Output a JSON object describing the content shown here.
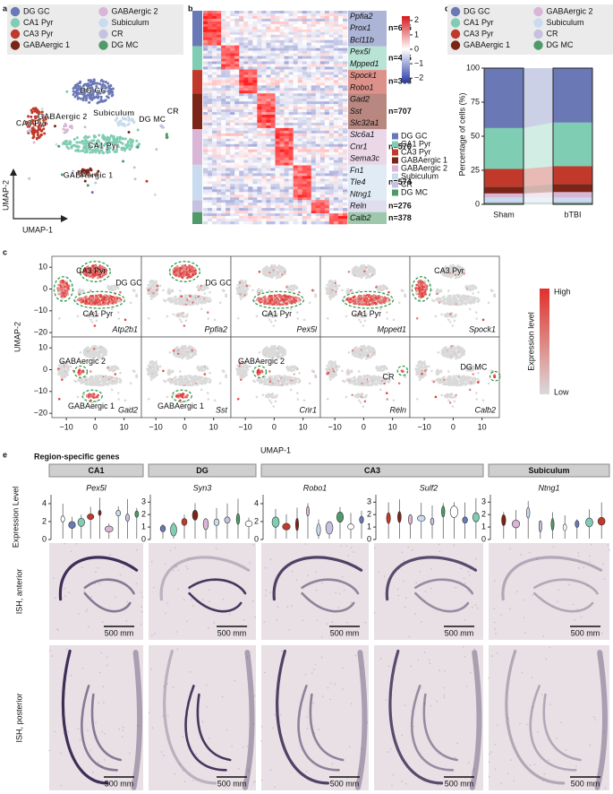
{
  "panel_labels": [
    "a",
    "b",
    "c",
    "d",
    "e"
  ],
  "umap": {
    "xlabel": "UMAP-1",
    "ylabel": "UMAP-2"
  },
  "heatmap": {
    "gene_groups": [
      [
        "Ppfia2",
        "Prox1",
        "Bcl11b"
      ],
      [
        "Pex5l",
        "Mpped1"
      ],
      [
        "Spock1",
        "Robo1"
      ],
      [
        "Gad2",
        "Sst",
        "Slc32a1"
      ],
      [
        "Slc6a1",
        "Cnr1",
        "Sema3c"
      ],
      [
        "Fn1",
        "Tle4",
        "Ntng1"
      ],
      [
        "Reln"
      ],
      [
        "Calb2"
      ]
    ],
    "counts": [
      "n=685",
      "n=425",
      "n=368",
      "n=707",
      "n=576",
      "n=574",
      "n=276",
      "n=378"
    ],
    "colorbar_lim": [
      -2.3,
      2.3
    ],
    "colorbar_ticks": [
      2,
      1,
      0,
      {
        "value": -1,
        "label": "−1"
      },
      {
        "value": -2,
        "label": "−2"
      }
    ]
  },
  "feature_plots": {
    "xlabel": "UMAP-1",
    "ylabel": "UMAP-2",
    "xlim": [
      -15,
      16
    ],
    "ylim": [
      -22,
      15
    ],
    "xticks": [
      {
        "value": -10,
        "label": "−10"
      },
      0,
      10
    ],
    "yticks": [
      10,
      0,
      {
        "value": -10,
        "label": "−10"
      },
      {
        "value": -20,
        "label": "−20"
      }
    ],
    "colorbar_title": "Expression level",
    "colorbar_high": "High",
    "colorbar_low": "Low",
    "plots": [
      {
        "gene": "Atp2b1",
        "annotations": [
          "DG GC",
          "CA3 Pyr",
          "CA1 Pyr"
        ]
      },
      {
        "gene": "Ppfia2",
        "annotations": [
          "DG GC"
        ]
      },
      {
        "gene": "Pex5l",
        "annotations": [
          "CA1 Pyr"
        ]
      },
      {
        "gene": "Mpped1",
        "annotations": [
          "CA1 Pyr"
        ]
      },
      {
        "gene": "Spock1",
        "annotations": [
          "CA3 Pyr"
        ]
      },
      {
        "gene": "Gad2",
        "annotations": [
          "GABAergic 1",
          "GABAergic 2"
        ]
      },
      {
        "gene": "Sst",
        "annotations": [
          "GABAergic 1"
        ]
      },
      {
        "gene": "Cnr1",
        "annotations": [
          "GABAergic 2"
        ]
      },
      {
        "gene": "Reln",
        "annotations": [
          "CR"
        ]
      },
      {
        "gene": "Calb2",
        "annotations": [
          "DG MC"
        ]
      }
    ]
  },
  "chart_data": {
    "type": "bar",
    "stacked": true,
    "categories": [
      "Sham",
      "bTBI"
    ],
    "ylabel": "Percentage of cells (%)",
    "ylim": [
      0,
      100
    ],
    "yticks": [
      0,
      25,
      50,
      75,
      100
    ],
    "series": [
      {
        "name": "DG GC",
        "color": "#6a78b6",
        "values": [
          44,
          40
        ]
      },
      {
        "name": "CA1 Pyr",
        "color": "#7fcdb2",
        "values": [
          30,
          32
        ]
      },
      {
        "name": "CA3 Pyr",
        "color": "#c0392b",
        "values": [
          13,
          13
        ]
      },
      {
        "name": "GABAergic 1",
        "color": "#7b2418",
        "values": [
          5,
          6
        ]
      },
      {
        "name": "GABAergic 2",
        "color": "#d9b6d6",
        "values": [
          3,
          4
        ]
      },
      {
        "name": "Subiculum",
        "color": "#c9dbef",
        "values": [
          3,
          3
        ]
      },
      {
        "name": "CR",
        "color": "#c6c1e0",
        "values": [
          1,
          1
        ]
      },
      {
        "name": "DG MC",
        "color": "#4f9a68",
        "values": [
          1,
          1
        ]
      }
    ]
  },
  "region_genes": {
    "title": "Region-specific genes",
    "ylabel": "Expression Level",
    "row_labels": [
      "ISH, anterior",
      "ISH, posterior"
    ],
    "scale_bar": "500 mm",
    "regions": [
      {
        "name": "CA1",
        "genes": [
          "Pex5l"
        ]
      },
      {
        "name": "DG",
        "genes": [
          "Syn3"
        ]
      },
      {
        "name": "CA3",
        "genes": [
          "Robo1",
          "Sulf2"
        ]
      },
      {
        "name": "Subiculum",
        "genes": [
          "Ntng1"
        ]
      }
    ],
    "violin_ylims": [
      [
        0,
        5
      ],
      [
        0,
        3.6
      ],
      [
        0,
        5
      ],
      [
        0,
        3.6
      ],
      [
        0,
        3.6
      ]
    ],
    "violin_yticks": [
      [
        4,
        2,
        0
      ],
      [
        3,
        2,
        1,
        0
      ],
      [
        4,
        2,
        0
      ],
      [
        3,
        2,
        1,
        0
      ],
      [
        3,
        2,
        1,
        0
      ]
    ]
  }
}
